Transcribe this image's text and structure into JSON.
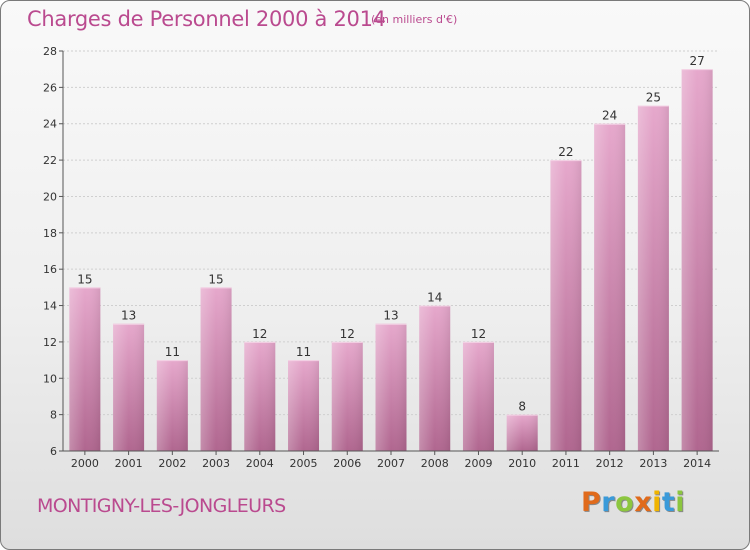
{
  "header": {
    "title": "Charges de Personnel 2000 à 2014",
    "subtitle": "(en milliers d'€)"
  },
  "footer": {
    "town": "MONTIGNY-LES-JONGLEURS",
    "logo_text": "Proxiti",
    "logo_colors": [
      "#e06a1b",
      "#3a9ad9",
      "#8cc63f",
      "#e06a1b",
      "#f0b400",
      "#3a9ad9",
      "#8cc63f"
    ]
  },
  "colors": {
    "bar_fill_top": "#e6a8cc",
    "bar_fill_bottom": "#b0668f",
    "text": "#333333",
    "grid": "#cfcfcf"
  },
  "chart_data": {
    "type": "bar",
    "categories": [
      "2000",
      "2001",
      "2002",
      "2003",
      "2004",
      "2005",
      "2006",
      "2007",
      "2008",
      "2009",
      "2010",
      "2011",
      "2012",
      "2013",
      "2014"
    ],
    "values": [
      15,
      13,
      11,
      15,
      12,
      11,
      12,
      13,
      14,
      12,
      8,
      22,
      24,
      25,
      27
    ],
    "data_labels": [
      "15",
      "13",
      "11",
      "15",
      "12",
      "11",
      "12",
      "13",
      "14",
      "12",
      "8",
      "22",
      "24",
      "25",
      "27"
    ],
    "ylim": [
      6,
      28
    ],
    "yticks": [
      6,
      8,
      10,
      12,
      14,
      16,
      18,
      20,
      22,
      24,
      26,
      28
    ],
    "ytick_labels": [
      "6",
      "8",
      "10",
      "12",
      "14",
      "16",
      "18",
      "20",
      "22",
      "24",
      "26",
      "28"
    ],
    "grid": true,
    "legend": "none"
  }
}
